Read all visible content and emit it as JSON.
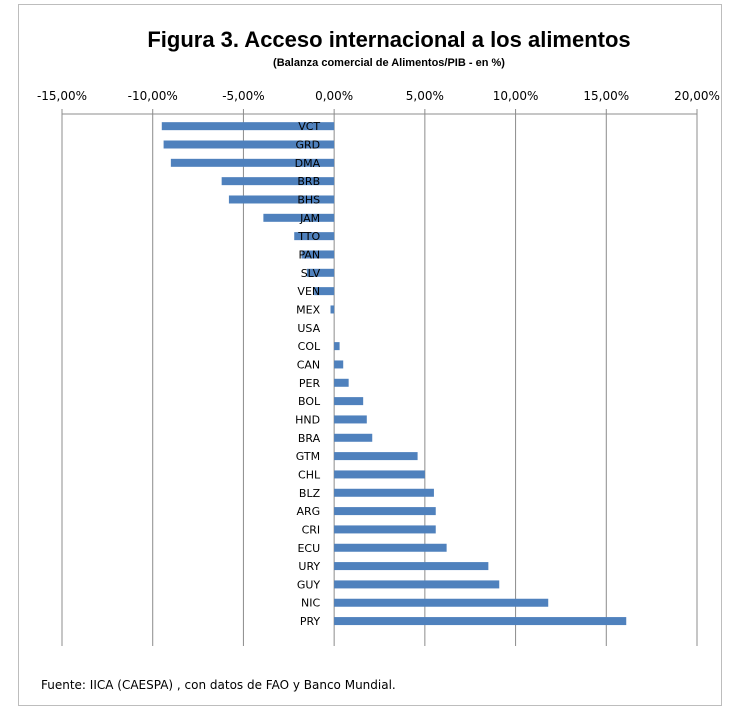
{
  "chart_data": {
    "type": "bar",
    "orientation": "horizontal",
    "title": "Figura 3. Acceso internacional a los alimentos",
    "subtitle": "(Balanza comercial de Alimentos/PIB - en %)",
    "x_ticks": [
      "-15,00%",
      "-10,00%",
      "-5,00%",
      "0,00%",
      "5,00%",
      "10,00%",
      "15,00%",
      "20,00%"
    ],
    "xlim": [
      -15,
      20
    ],
    "x_step": 5,
    "axis_position": "top",
    "grid": true,
    "bar_color": "#4F81BD",
    "categories": [
      "VCT",
      "GRD",
      "DMA",
      "BRB",
      "BHS",
      "JAM",
      "TTO",
      "PAN",
      "SLV",
      "VEN",
      "MEX",
      "USA",
      "COL",
      "CAN",
      "PER",
      "BOL",
      "HND",
      "BRA",
      "GTM",
      "CHL",
      "BLZ",
      "ARG",
      "CRI",
      "ECU",
      "URY",
      "GUY",
      "NIC",
      "PRY"
    ],
    "values": [
      -9.5,
      -9.4,
      -9.0,
      -6.2,
      -5.8,
      -3.9,
      -2.2,
      -1.8,
      -1.5,
      -1.1,
      -0.2,
      0.0,
      0.3,
      0.5,
      0.8,
      1.6,
      1.8,
      2.1,
      4.6,
      5.0,
      5.5,
      5.6,
      5.6,
      6.2,
      8.5,
      9.1,
      11.8,
      16.1
    ]
  },
  "source_note": "Fuente:  IICA (CAESPA) , con datos de FAO y Banco Mundial."
}
